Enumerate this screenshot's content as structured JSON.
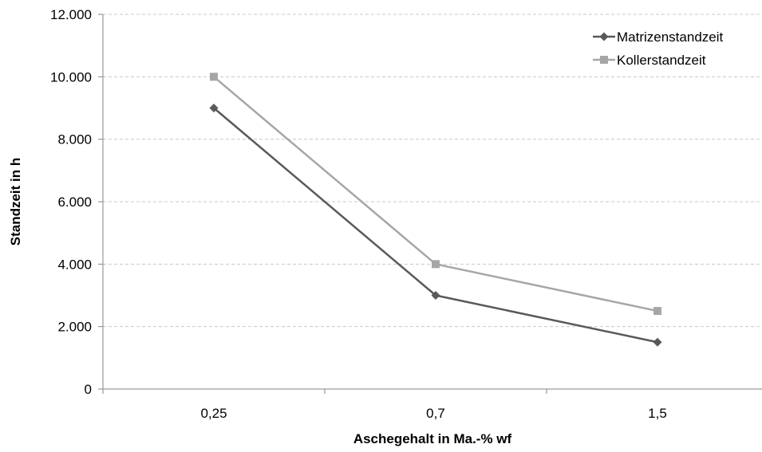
{
  "chart_data": {
    "type": "line",
    "categories": [
      "0,25",
      "0,7",
      "1,5"
    ],
    "series": [
      {
        "name": "Matrizenstandzeit",
        "values": [
          9000,
          3000,
          1500
        ],
        "color": "#595959",
        "marker": "diamond"
      },
      {
        "name": "Kollerstandzeit",
        "values": [
          10000,
          4000,
          2500
        ],
        "color": "#a6a6a6",
        "marker": "square"
      }
    ],
    "xlabel": "Aschegehalt in Ma.-% wf",
    "ylabel": "Standzeit in h",
    "ylim": [
      0,
      12000
    ],
    "yticks": [
      0,
      2000,
      4000,
      6000,
      8000,
      10000,
      12000
    ],
    "ytick_labels": [
      "0",
      "2.000",
      "4.000",
      "6.000",
      "8.000",
      "10.000",
      "12.000"
    ],
    "grid": "horizontal-dashed",
    "legend_position": "top-right",
    "axis_color": "#868686",
    "grid_color": "#c8c8c8"
  }
}
